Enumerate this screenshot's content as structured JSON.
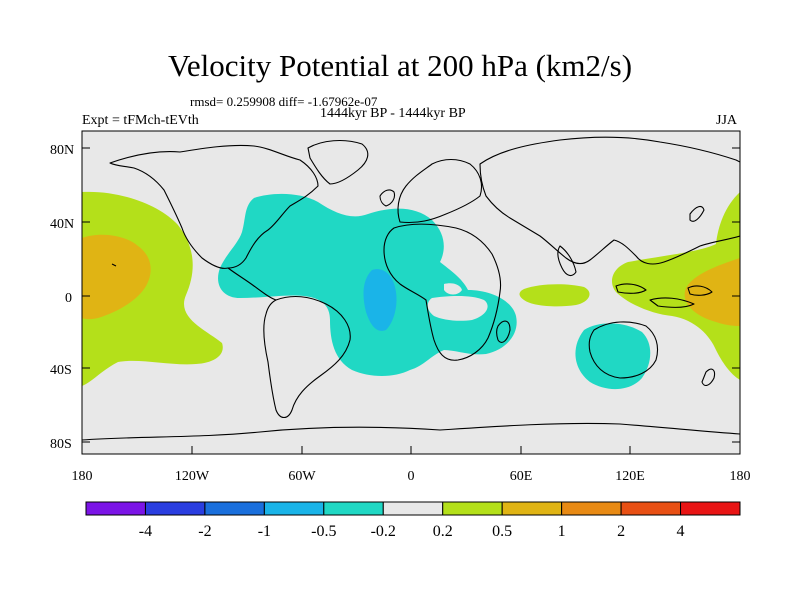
{
  "title": "Velocity Potential at 200 hPa (km2/s)",
  "stats_text": "rmsd= 0.259908 diff= -1.67962e-07",
  "period_text": "1444kyr BP - 1444kyr BP",
  "experiment_text": "Expt = tFMch-tEVth",
  "season": "JJA",
  "lat_ticks": [
    "80N",
    "40N",
    "0",
    "40S",
    "80S"
  ],
  "lon_ticks": [
    "180",
    "120W",
    "60W",
    "0",
    "60E",
    "120E",
    "180"
  ],
  "colorbar": {
    "colors": [
      "#7b14e6",
      "#2a3ee0",
      "#1a6fdc",
      "#1ab4e8",
      "#20d8c4",
      "#e8e8e8",
      "#b4e01a",
      "#e0b414",
      "#e88a14",
      "#e85014",
      "#e81414"
    ],
    "labels": [
      "-4",
      "-2",
      "-1",
      "-0.5",
      "-0.2",
      "0.2",
      "0.5",
      "1",
      "2",
      "4"
    ]
  },
  "colors": {
    "background": "#e8e8e8",
    "negative_weak": "#20d8c4",
    "negative_moderate": "#1ab4e8",
    "positive_weak": "#b4e01a",
    "positive_moderate": "#e0b414",
    "positive_strong": "#e88a14"
  }
}
